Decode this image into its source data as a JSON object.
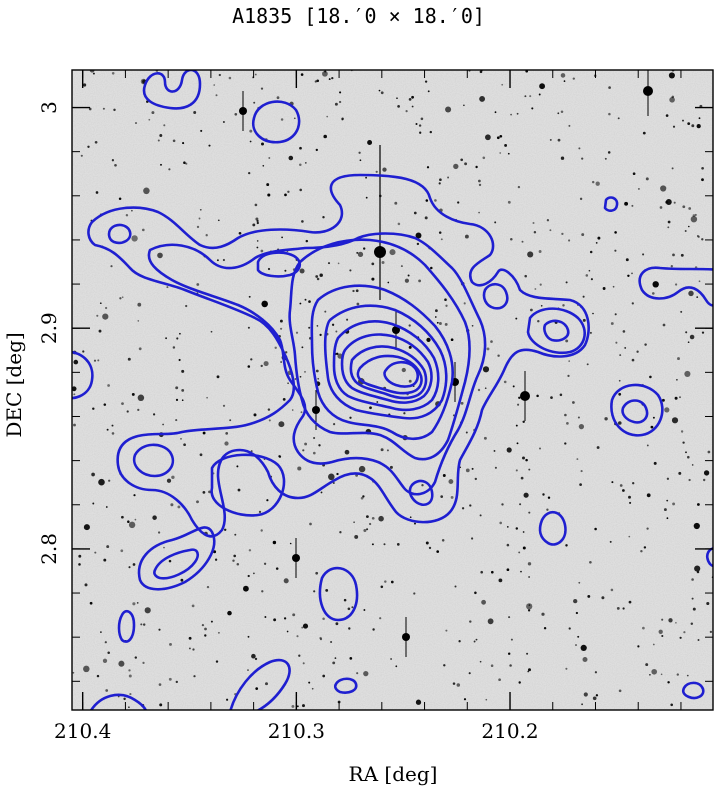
{
  "chart_data": {
    "type": "contour",
    "title": "A1835  [18.′0 × 18.′0]",
    "xlabel": "RA [deg]",
    "ylabel": "DEC [deg]",
    "x_reversed": true,
    "xlim": [
      210.405,
      210.105
    ],
    "ylim": [
      2.727,
      3.017
    ],
    "x_ticks": [
      210.4,
      210.3,
      210.2
    ],
    "x_tick_labels": [
      "210.4",
      "210.3",
      "210.2"
    ],
    "y_ticks": [
      2.8,
      2.9,
      3.0
    ],
    "y_tick_labels": [
      "2.8",
      "2.9",
      "3"
    ],
    "background": "optical sky image (greyscale, inverted)",
    "contour_color": "#1f1fd0",
    "peak": {
      "ra": 210.252,
      "dec": 2.874
    },
    "grid": false
  }
}
